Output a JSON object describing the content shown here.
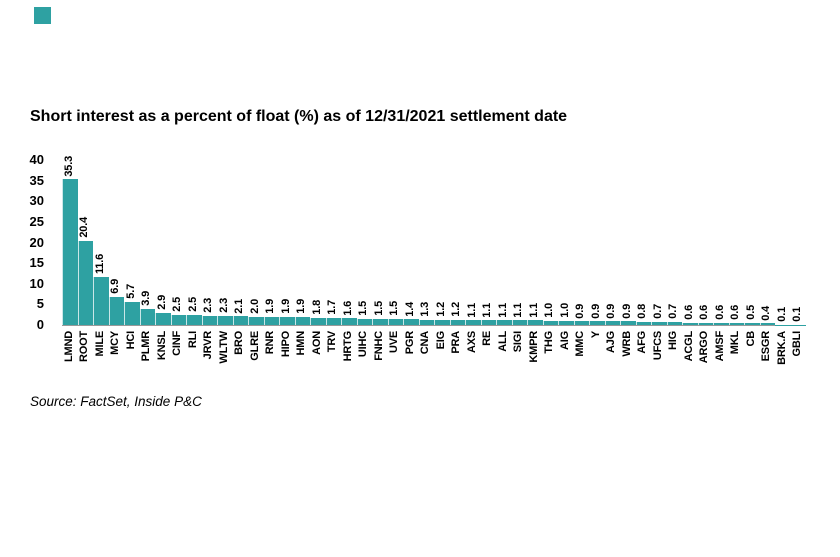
{
  "brand": {
    "logo_square_color": "#2EA1A2"
  },
  "chart_data": {
    "type": "bar",
    "title": "Short interest as a percent of float (%) as of 12/31/2021 settlement date",
    "categories": [
      "LMND",
      "ROOT",
      "MILE",
      "MCY",
      "HCI",
      "PLMR",
      "KNSL",
      "CINF",
      "RLI",
      "JRVR",
      "WLTW",
      "BRO",
      "GLRE",
      "RNR",
      "HIPO",
      "HMN",
      "AON",
      "TRV",
      "HRTG",
      "UIHC",
      "FNHC",
      "UVE",
      "PGR",
      "CNA",
      "EIG",
      "PRA",
      "AXS",
      "RE",
      "ALL",
      "SIGI",
      "KMPR",
      "THG",
      "AIG",
      "MMC",
      "Y",
      "AJG",
      "WRB",
      "AFG",
      "UFCS",
      "HIG",
      "ACGL",
      "ARGO",
      "AMSF",
      "MKL",
      "CB",
      "ESGR",
      "BRK.A",
      "GBLI"
    ],
    "values": [
      35.3,
      20.4,
      11.6,
      6.9,
      5.7,
      3.9,
      2.9,
      2.5,
      2.5,
      2.3,
      2.3,
      2.1,
      2.0,
      1.9,
      1.9,
      1.9,
      1.8,
      1.7,
      1.6,
      1.5,
      1.5,
      1.5,
      1.4,
      1.3,
      1.2,
      1.2,
      1.1,
      1.1,
      1.1,
      1.1,
      1.1,
      1.0,
      1.0,
      0.9,
      0.9,
      0.9,
      0.9,
      0.8,
      0.7,
      0.7,
      0.6,
      0.6,
      0.6,
      0.6,
      0.5,
      0.4,
      0.1,
      0.1
    ],
    "xlabel": "",
    "ylabel": "",
    "ylim": [
      0,
      40
    ],
    "yticks": [
      40,
      35,
      30,
      25,
      20,
      15,
      10,
      5,
      0
    ],
    "grid": false,
    "legend": "none",
    "bar_color": "#2EA1A2",
    "axis_line_color": "#999999",
    "value_label_rotation": 90,
    "category_label_rotation": 90,
    "value_label_decimals": 1
  },
  "footer": {
    "source": "Source: FactSet, Inside P&C"
  }
}
